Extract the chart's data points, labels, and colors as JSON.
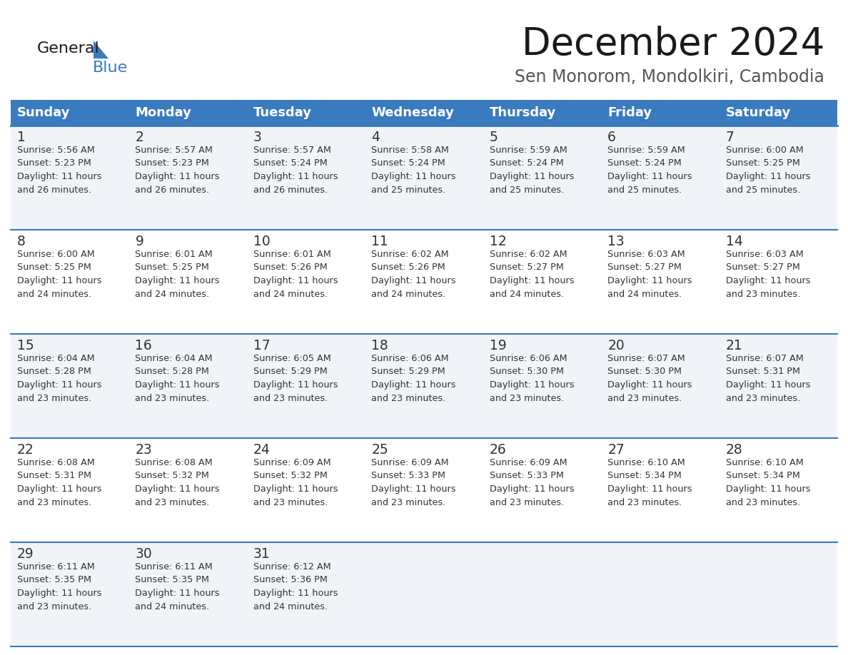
{
  "title": "December 2024",
  "subtitle": "Sen Monorom, Mondolkiri, Cambodia",
  "header_color": "#3a7abf",
  "header_text_color": "#ffffff",
  "days_of_week": [
    "Sunday",
    "Monday",
    "Tuesday",
    "Wednesday",
    "Thursday",
    "Friday",
    "Saturday"
  ],
  "bg_color": "#ffffff",
  "cell_bg_even": "#f0f4f8",
  "cell_bg_odd": "#ffffff",
  "divider_color": "#3a7abf",
  "text_color": "#333333",
  "calendar_data": [
    [
      {
        "day": 1,
        "sunrise": "5:56 AM",
        "sunset": "5:23 PM",
        "daylight_min": "26"
      },
      {
        "day": 2,
        "sunrise": "5:57 AM",
        "sunset": "5:23 PM",
        "daylight_min": "26"
      },
      {
        "day": 3,
        "sunrise": "5:57 AM",
        "sunset": "5:24 PM",
        "daylight_min": "26"
      },
      {
        "day": 4,
        "sunrise": "5:58 AM",
        "sunset": "5:24 PM",
        "daylight_min": "25"
      },
      {
        "day": 5,
        "sunrise": "5:59 AM",
        "sunset": "5:24 PM",
        "daylight_min": "25"
      },
      {
        "day": 6,
        "sunrise": "5:59 AM",
        "sunset": "5:24 PM",
        "daylight_min": "25"
      },
      {
        "day": 7,
        "sunrise": "6:00 AM",
        "sunset": "5:25 PM",
        "daylight_min": "25"
      }
    ],
    [
      {
        "day": 8,
        "sunrise": "6:00 AM",
        "sunset": "5:25 PM",
        "daylight_min": "24"
      },
      {
        "day": 9,
        "sunrise": "6:01 AM",
        "sunset": "5:25 PM",
        "daylight_min": "24"
      },
      {
        "day": 10,
        "sunrise": "6:01 AM",
        "sunset": "5:26 PM",
        "daylight_min": "24"
      },
      {
        "day": 11,
        "sunrise": "6:02 AM",
        "sunset": "5:26 PM",
        "daylight_min": "24"
      },
      {
        "day": 12,
        "sunrise": "6:02 AM",
        "sunset": "5:27 PM",
        "daylight_min": "24"
      },
      {
        "day": 13,
        "sunrise": "6:03 AM",
        "sunset": "5:27 PM",
        "daylight_min": "24"
      },
      {
        "day": 14,
        "sunrise": "6:03 AM",
        "sunset": "5:27 PM",
        "daylight_min": "23"
      }
    ],
    [
      {
        "day": 15,
        "sunrise": "6:04 AM",
        "sunset": "5:28 PM",
        "daylight_min": "23"
      },
      {
        "day": 16,
        "sunrise": "6:04 AM",
        "sunset": "5:28 PM",
        "daylight_min": "23"
      },
      {
        "day": 17,
        "sunrise": "6:05 AM",
        "sunset": "5:29 PM",
        "daylight_min": "23"
      },
      {
        "day": 18,
        "sunrise": "6:06 AM",
        "sunset": "5:29 PM",
        "daylight_min": "23"
      },
      {
        "day": 19,
        "sunrise": "6:06 AM",
        "sunset": "5:30 PM",
        "daylight_min": "23"
      },
      {
        "day": 20,
        "sunrise": "6:07 AM",
        "sunset": "5:30 PM",
        "daylight_min": "23"
      },
      {
        "day": 21,
        "sunrise": "6:07 AM",
        "sunset": "5:31 PM",
        "daylight_min": "23"
      }
    ],
    [
      {
        "day": 22,
        "sunrise": "6:08 AM",
        "sunset": "5:31 PM",
        "daylight_min": "23"
      },
      {
        "day": 23,
        "sunrise": "6:08 AM",
        "sunset": "5:32 PM",
        "daylight_min": "23"
      },
      {
        "day": 24,
        "sunrise": "6:09 AM",
        "sunset": "5:32 PM",
        "daylight_min": "23"
      },
      {
        "day": 25,
        "sunrise": "6:09 AM",
        "sunset": "5:33 PM",
        "daylight_min": "23"
      },
      {
        "day": 26,
        "sunrise": "6:09 AM",
        "sunset": "5:33 PM",
        "daylight_min": "23"
      },
      {
        "day": 27,
        "sunrise": "6:10 AM",
        "sunset": "5:34 PM",
        "daylight_min": "23"
      },
      {
        "day": 28,
        "sunrise": "6:10 AM",
        "sunset": "5:34 PM",
        "daylight_min": "23"
      }
    ],
    [
      {
        "day": 29,
        "sunrise": "6:11 AM",
        "sunset": "5:35 PM",
        "daylight_min": "23"
      },
      {
        "day": 30,
        "sunrise": "6:11 AM",
        "sunset": "5:35 PM",
        "daylight_min": "24"
      },
      {
        "day": 31,
        "sunrise": "6:12 AM",
        "sunset": "5:36 PM",
        "daylight_min": "24"
      },
      null,
      null,
      null,
      null
    ]
  ]
}
